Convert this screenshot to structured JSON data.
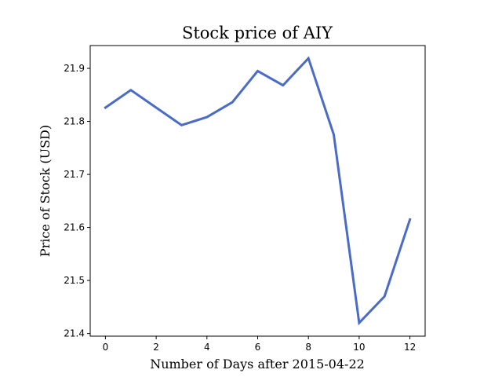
{
  "chart_data": {
    "type": "line",
    "title": "Stock price of AIY",
    "xlabel": "Number of Days after 2015-04-22",
    "ylabel": "Price of Stock (USD)",
    "xlim": [
      -0.6,
      12.6
    ],
    "ylim": [
      21.395,
      21.943
    ],
    "x_ticks": [
      0,
      2,
      4,
      6,
      8,
      10,
      12
    ],
    "y_ticks": [
      21.4,
      21.5,
      21.6,
      21.7,
      21.8,
      21.9
    ],
    "grid": false,
    "legend": "none",
    "line_color": "#4a6bc8",
    "series": [
      {
        "x": [
          0,
          1,
          2,
          3,
          4,
          5,
          6,
          7,
          8,
          9,
          10,
          11,
          12
        ],
        "values": [
          21.826,
          21.859,
          21.826,
          21.793,
          21.808,
          21.836,
          21.895,
          21.868,
          21.919,
          21.775,
          21.42,
          21.47,
          21.615
        ]
      }
    ]
  }
}
